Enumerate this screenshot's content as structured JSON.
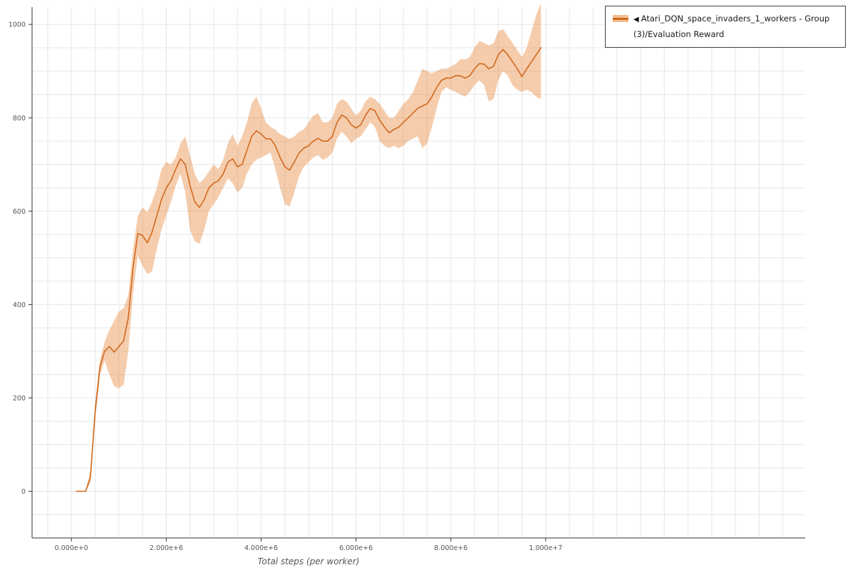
{
  "colors": {
    "line": "#d2691e",
    "band": "#e8893c",
    "grid": "#e6e6e6",
    "axis": "#333333",
    "tick_text": "#555555"
  },
  "legend": {
    "marker": "◀",
    "label": "Atari_DQN_space_invaders_1_workers - Group(3)/Evaluation Reward"
  },
  "chart_data": {
    "type": "line",
    "title": "",
    "xlabel": "Total steps (per worker)",
    "ylabel": "",
    "legend_position": "top-right",
    "grid": {
      "x_step_millions": 0.5,
      "y_step": 50
    },
    "xlim_millions": [
      -0.83,
      15.47
    ],
    "ylim": [
      -100,
      1037
    ],
    "xticks": {
      "values_millions": [
        0,
        2,
        4,
        6,
        8,
        10
      ],
      "labels": [
        "0.000e+0",
        "2.000e+6",
        "4.000e+6",
        "6.000e+6",
        "8.000e+6",
        "1.000e+7"
      ]
    },
    "yticks": {
      "values": [
        0,
        200,
        400,
        600,
        800,
        1000
      ],
      "labels": [
        "0",
        "200",
        "400",
        "600",
        "800",
        "1000"
      ]
    },
    "series": [
      {
        "name": "Atari_DQN_space_invaders_1_workers - Group(3)/Evaluation Reward",
        "x_millions": [
          0.1,
          0.2,
          0.3,
          0.4,
          0.5,
          0.6,
          0.7,
          0.8,
          0.9,
          1.0,
          1.1,
          1.2,
          1.3,
          1.4,
          1.5,
          1.6,
          1.7,
          1.8,
          1.9,
          2.0,
          2.1,
          2.2,
          2.3,
          2.4,
          2.5,
          2.6,
          2.7,
          2.8,
          2.9,
          3.0,
          3.1,
          3.2,
          3.3,
          3.4,
          3.5,
          3.6,
          3.7,
          3.8,
          3.9,
          4.0,
          4.1,
          4.2,
          4.3,
          4.4,
          4.5,
          4.6,
          4.7,
          4.8,
          4.9,
          5.0,
          5.1,
          5.2,
          5.3,
          5.4,
          5.5,
          5.6,
          5.7,
          5.8,
          5.9,
          6.0,
          6.1,
          6.2,
          6.3,
          6.4,
          6.5,
          6.6,
          6.7,
          6.8,
          6.9,
          7.0,
          7.1,
          7.2,
          7.3,
          7.4,
          7.5,
          7.6,
          7.7,
          7.8,
          7.9,
          8.0,
          8.1,
          8.2,
          8.3,
          8.4,
          8.5,
          8.6,
          8.7,
          8.8,
          8.9,
          9.0,
          9.1,
          9.2,
          9.3,
          9.4,
          9.5,
          9.6,
          9.7,
          9.8,
          9.9
        ],
        "mean": [
          0,
          0,
          0,
          30,
          170,
          265,
          300,
          310,
          298,
          310,
          322,
          372,
          480,
          552,
          548,
          532,
          555,
          590,
          625,
          650,
          665,
          690,
          712,
          700,
          655,
          620,
          608,
          625,
          650,
          660,
          665,
          680,
          705,
          712,
          695,
          700,
          730,
          760,
          772,
          765,
          755,
          755,
          740,
          715,
          695,
          688,
          705,
          725,
          735,
          740,
          750,
          756,
          750,
          750,
          760,
          790,
          806,
          800,
          785,
          778,
          785,
          805,
          820,
          815,
          795,
          780,
          768,
          775,
          780,
          790,
          800,
          810,
          820,
          825,
          830,
          845,
          865,
          880,
          885,
          885,
          890,
          890,
          885,
          890,
          905,
          916,
          915,
          905,
          910,
          935,
          946,
          935,
          920,
          905,
          888,
          905,
          920,
          935,
          950
        ],
        "lo": [
          0,
          0,
          0,
          18,
          150,
          248,
          280,
          250,
          225,
          220,
          228,
          300,
          425,
          505,
          482,
          465,
          470,
          520,
          560,
          590,
          620,
          655,
          680,
          640,
          560,
          535,
          530,
          560,
          600,
          615,
          630,
          650,
          670,
          660,
          640,
          650,
          680,
          700,
          710,
          715,
          720,
          725,
          690,
          650,
          615,
          610,
          640,
          675,
          695,
          705,
          715,
          720,
          710,
          715,
          725,
          755,
          770,
          760,
          745,
          755,
          760,
          775,
          790,
          780,
          750,
          740,
          735,
          740,
          735,
          740,
          750,
          755,
          760,
          735,
          745,
          780,
          820,
          855,
          865,
          860,
          855,
          850,
          845,
          855,
          870,
          880,
          870,
          835,
          840,
          880,
          900,
          890,
          870,
          860,
          855,
          860,
          855,
          845,
          840
        ],
        "hi": [
          0,
          0,
          0,
          45,
          190,
          280,
          320,
          345,
          365,
          385,
          392,
          420,
          520,
          590,
          608,
          598,
          620,
          650,
          690,
          705,
          700,
          715,
          745,
          760,
          720,
          680,
          660,
          670,
          685,
          700,
          690,
          710,
          745,
          765,
          740,
          760,
          790,
          830,
          845,
          820,
          790,
          780,
          775,
          765,
          760,
          755,
          760,
          770,
          775,
          790,
          805,
          810,
          790,
          790,
          800,
          830,
          840,
          835,
          820,
          805,
          815,
          835,
          845,
          840,
          830,
          815,
          800,
          800,
          815,
          830,
          840,
          855,
          880,
          905,
          900,
          895,
          900,
          905,
          905,
          910,
          915,
          925,
          925,
          930,
          950,
          965,
          960,
          955,
          960,
          985,
          990,
          975,
          960,
          945,
          930,
          950,
          985,
          1020,
          1045
        ]
      }
    ]
  }
}
